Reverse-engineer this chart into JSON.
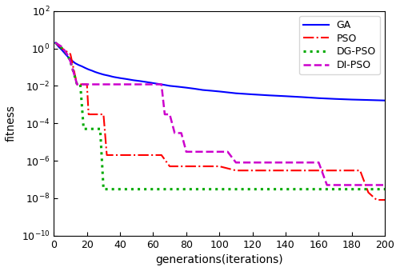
{
  "title": "",
  "xlabel": "generations(iterations)",
  "ylabel": "fitness",
  "xlim": [
    0,
    200
  ],
  "ylim_log": [
    -10,
    2
  ],
  "xticks": [
    0,
    20,
    40,
    60,
    80,
    100,
    120,
    140,
    160,
    180,
    200
  ],
  "GA": {
    "label": "GA",
    "color": "#0000FF",
    "linestyle": "solid",
    "linewidth": 1.5,
    "x": [
      1,
      3,
      5,
      7,
      9,
      11,
      13,
      15,
      17,
      19,
      21,
      23,
      25,
      27,
      30,
      33,
      36,
      40,
      44,
      48,
      52,
      56,
      60,
      65,
      70,
      75,
      80,
      85,
      90,
      95,
      100,
      110,
      120,
      130,
      140,
      150,
      160,
      170,
      180,
      190,
      200
    ],
    "y": [
      2.0,
      1.2,
      0.8,
      0.5,
      0.32,
      0.22,
      0.16,
      0.13,
      0.11,
      0.09,
      0.075,
      0.065,
      0.055,
      0.048,
      0.04,
      0.035,
      0.03,
      0.026,
      0.023,
      0.02,
      0.018,
      0.016,
      0.014,
      0.012,
      0.01,
      0.009,
      0.008,
      0.007,
      0.006,
      0.0055,
      0.005,
      0.004,
      0.0035,
      0.0031,
      0.0028,
      0.0025,
      0.0022,
      0.002,
      0.00185,
      0.00175,
      0.00165
    ]
  },
  "PSO": {
    "label": "PSO",
    "color": "#FF0000",
    "linestyle": "dashdot",
    "linewidth": 1.5,
    "x": [
      1,
      5,
      10,
      14,
      15,
      20,
      21,
      25,
      28,
      30,
      32,
      35,
      40,
      50,
      60,
      65,
      70,
      72,
      80,
      90,
      100,
      110,
      120,
      130,
      140,
      150,
      160,
      170,
      180,
      185,
      190,
      195,
      200
    ],
    "y": [
      2.0,
      1.0,
      0.5,
      0.012,
      0.012,
      0.012,
      0.0003,
      0.0003,
      0.0003,
      0.0003,
      2e-06,
      2e-06,
      2e-06,
      2e-06,
      2e-06,
      2e-06,
      5e-07,
      5e-07,
      5e-07,
      5e-07,
      5e-07,
      3e-07,
      3e-07,
      3e-07,
      3e-07,
      3e-07,
      3e-07,
      3e-07,
      3e-07,
      3e-07,
      2e-08,
      8e-09,
      8e-09
    ]
  },
  "DGPSO": {
    "label": "DG-PSO",
    "color": "#00AA00",
    "linestyle": "dotted",
    "linewidth": 2.2,
    "x": [
      1,
      5,
      8,
      10,
      12,
      14,
      16,
      18,
      19,
      22,
      25,
      28,
      30,
      35,
      40,
      60,
      80,
      100,
      120,
      140,
      160,
      180,
      200
    ],
    "y": [
      2.0,
      1.0,
      0.5,
      0.2,
      0.05,
      0.012,
      0.012,
      5e-05,
      5e-05,
      5e-05,
      5e-05,
      5e-05,
      3e-08,
      3e-08,
      3e-08,
      3e-08,
      3e-08,
      3e-08,
      3e-08,
      3e-08,
      3e-08,
      3e-08,
      3e-08
    ]
  },
  "DIPSO": {
    "label": "DI-PSO",
    "color": "#CC00CC",
    "linestyle": "dashed",
    "linewidth": 1.8,
    "x": [
      1,
      5,
      8,
      10,
      12,
      14,
      16,
      18,
      20,
      25,
      30,
      35,
      40,
      45,
      50,
      55,
      60,
      65,
      67,
      70,
      73,
      77,
      80,
      85,
      90,
      95,
      100,
      105,
      110,
      115,
      120,
      125,
      130,
      140,
      150,
      160,
      165,
      170,
      175,
      180,
      185,
      190,
      195,
      200
    ],
    "y": [
      2.0,
      1.2,
      0.5,
      0.2,
      0.05,
      0.012,
      0.012,
      0.012,
      0.012,
      0.012,
      0.012,
      0.012,
      0.012,
      0.012,
      0.012,
      0.012,
      0.012,
      0.012,
      0.0003,
      0.0003,
      3e-05,
      3e-05,
      3e-06,
      3e-06,
      3e-06,
      3e-06,
      3e-06,
      3e-06,
      8e-07,
      8e-07,
      8e-07,
      8e-07,
      8e-07,
      8e-07,
      8e-07,
      8e-07,
      5e-08,
      5e-08,
      5e-08,
      5e-08,
      5e-08,
      5e-08,
      5e-08,
      5e-08
    ]
  },
  "legend_loc": "upper right",
  "background_color": "#FFFFFF",
  "figure_facecolor": "#FFFFFF"
}
